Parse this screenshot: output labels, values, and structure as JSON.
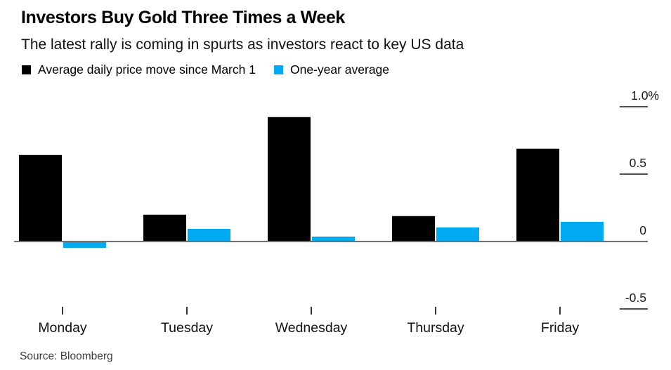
{
  "header": {
    "title": "Investors Buy Gold Three Times a Week",
    "subtitle": "The latest rally is coming in spurts as investors react to key US data"
  },
  "legend": [
    {
      "label": "Average daily price move since March 1",
      "color": "#000000"
    },
    {
      "label": "One-year average",
      "color": "#00aaf0"
    }
  ],
  "chart_data": {
    "type": "bar",
    "title": "Investors Buy Gold Three Times a Week",
    "subtitle": "The latest rally is coming in spurts as investors react to key US data",
    "categories": [
      "Monday",
      "Tuesday",
      "Wednesday",
      "Thursday",
      "Friday"
    ],
    "series": [
      {
        "name": "Average daily price move since March 1",
        "color": "#000000",
        "values": [
          0.64,
          0.2,
          0.92,
          0.19,
          0.69
        ]
      },
      {
        "name": "One-year average",
        "color": "#00aaf0",
        "values": [
          -0.04,
          0.09,
          0.03,
          0.1,
          0.14
        ]
      }
    ],
    "unit": "%",
    "ylim": [
      -0.5,
      1.0
    ],
    "yticks": [
      {
        "label": "1.0%",
        "value": 1.0
      },
      {
        "label": "0.5",
        "value": 0.5
      },
      {
        "label": "0",
        "value": 0
      },
      {
        "label": "-0.5",
        "value": -0.5
      }
    ],
    "grid": false,
    "legend_position": "top",
    "axis_side": "right"
  },
  "footer": {
    "source": "Source: Bloomberg"
  }
}
